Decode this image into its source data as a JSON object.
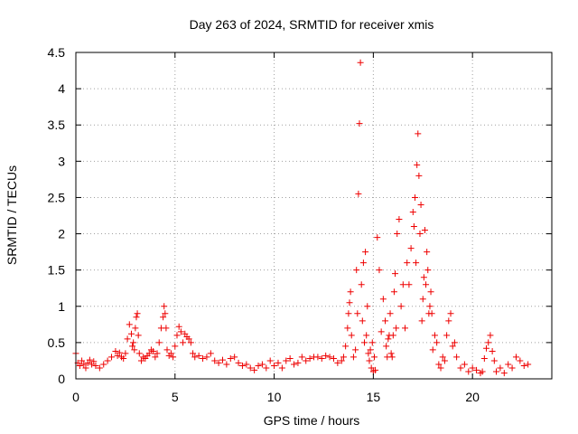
{
  "chart_data": {
    "type": "scatter",
    "title": "Day 263 of 2024, SRMTID for receiver xmis",
    "xlabel": "GPS time / hours",
    "ylabel": "SRMTID / TECUs",
    "xlim": [
      0,
      24
    ],
    "ylim": [
      0,
      4.5
    ],
    "xticks": [
      0,
      5,
      10,
      15,
      20
    ],
    "xtick_labels": [
      "0",
      "5",
      "10",
      "15",
      "20"
    ],
    "yticks": [
      0,
      0.5,
      1,
      1.5,
      2,
      2.5,
      3,
      3.5,
      4,
      4.5
    ],
    "ytick_labels": [
      "0",
      "0.5",
      "1",
      "1.5",
      "2",
      "2.5",
      "3",
      "3.5",
      "4",
      "4.5"
    ],
    "grid": true,
    "marker": "plus",
    "series": [
      {
        "name": "SRMTID",
        "color": "#ee0000",
        "x": [
          0.0,
          0.1,
          0.2,
          0.3,
          0.4,
          0.5,
          0.6,
          0.7,
          0.8,
          0.9,
          1.0,
          1.2,
          1.4,
          1.6,
          1.8,
          2.0,
          2.1,
          2.2,
          2.3,
          2.4,
          2.5,
          2.6,
          2.7,
          2.8,
          2.85,
          2.9,
          2.95,
          3.0,
          3.05,
          3.1,
          3.15,
          3.2,
          3.3,
          3.4,
          3.5,
          3.6,
          3.7,
          3.8,
          3.9,
          4.0,
          4.1,
          4.2,
          4.3,
          4.4,
          4.45,
          4.5,
          4.55,
          4.6,
          4.7,
          4.8,
          4.9,
          5.0,
          5.1,
          5.2,
          5.3,
          5.4,
          5.5,
          5.6,
          5.7,
          5.8,
          5.9,
          6.0,
          6.2,
          6.4,
          6.6,
          6.8,
          7.0,
          7.2,
          7.4,
          7.6,
          7.8,
          8.0,
          8.2,
          8.4,
          8.6,
          8.8,
          9.0,
          9.2,
          9.4,
          9.6,
          9.8,
          10.0,
          10.2,
          10.4,
          10.6,
          10.8,
          11.0,
          11.2,
          11.4,
          11.6,
          11.8,
          12.0,
          12.2,
          12.4,
          12.6,
          12.8,
          13.0,
          13.2,
          13.4,
          13.5,
          13.6,
          13.7,
          13.75,
          13.8,
          13.85,
          13.9,
          14.0,
          14.1,
          14.15,
          14.2,
          14.25,
          14.3,
          14.35,
          14.4,
          14.45,
          14.5,
          14.55,
          14.6,
          14.65,
          14.7,
          14.75,
          14.8,
          14.85,
          14.9,
          14.95,
          15.0,
          15.05,
          15.1,
          15.2,
          15.3,
          15.4,
          15.5,
          15.6,
          15.65,
          15.7,
          15.75,
          15.8,
          15.85,
          15.9,
          15.95,
          16.0,
          16.05,
          16.1,
          16.15,
          16.2,
          16.3,
          16.4,
          16.5,
          16.6,
          16.7,
          16.8,
          16.9,
          17.0,
          17.05,
          17.1,
          17.15,
          17.2,
          17.25,
          17.3,
          17.35,
          17.4,
          17.45,
          17.5,
          17.55,
          17.6,
          17.65,
          17.7,
          17.75,
          17.8,
          17.85,
          17.9,
          17.95,
          18.0,
          18.1,
          18.2,
          18.3,
          18.4,
          18.5,
          18.6,
          18.7,
          18.8,
          18.9,
          19.0,
          19.1,
          19.2,
          19.4,
          19.6,
          19.8,
          20.0,
          20.2,
          20.4,
          20.5,
          20.6,
          20.7,
          20.8,
          20.9,
          21.0,
          21.1,
          21.2,
          21.4,
          21.6,
          21.8,
          22.0,
          22.2,
          22.4,
          22.6,
          22.8
        ],
        "y": [
          0.35,
          0.22,
          0.18,
          0.25,
          0.2,
          0.15,
          0.22,
          0.26,
          0.2,
          0.24,
          0.18,
          0.15,
          0.2,
          0.25,
          0.3,
          0.38,
          0.32,
          0.36,
          0.3,
          0.28,
          0.35,
          0.55,
          0.75,
          0.62,
          0.45,
          0.5,
          0.4,
          0.7,
          0.85,
          0.9,
          0.6,
          0.35,
          0.25,
          0.3,
          0.28,
          0.32,
          0.35,
          0.4,
          0.38,
          0.3,
          0.35,
          0.5,
          0.7,
          0.85,
          1.0,
          0.9,
          0.7,
          0.4,
          0.32,
          0.35,
          0.3,
          0.45,
          0.6,
          0.72,
          0.65,
          0.5,
          0.62,
          0.58,
          0.55,
          0.5,
          0.35,
          0.3,
          0.32,
          0.28,
          0.3,
          0.35,
          0.25,
          0.22,
          0.26,
          0.2,
          0.28,
          0.3,
          0.22,
          0.18,
          0.2,
          0.15,
          0.12,
          0.18,
          0.2,
          0.15,
          0.25,
          0.18,
          0.22,
          0.15,
          0.25,
          0.28,
          0.2,
          0.22,
          0.3,
          0.25,
          0.28,
          0.3,
          0.3,
          0.28,
          0.32,
          0.3,
          0.28,
          0.22,
          0.25,
          0.3,
          0.45,
          0.7,
          0.9,
          1.05,
          1.2,
          0.6,
          0.3,
          0.4,
          1.5,
          0.9,
          2.55,
          3.52,
          4.36,
          1.3,
          0.8,
          1.6,
          0.5,
          1.75,
          0.6,
          1.0,
          0.35,
          0.25,
          0.4,
          0.15,
          0.5,
          0.1,
          0.3,
          0.12,
          1.95,
          1.5,
          0.65,
          1.1,
          0.8,
          0.45,
          0.3,
          0.55,
          0.6,
          0.9,
          0.35,
          0.3,
          0.6,
          1.2,
          1.45,
          0.7,
          2.0,
          2.2,
          1.0,
          1.3,
          0.7,
          1.6,
          1.3,
          1.8,
          2.3,
          2.1,
          2.5,
          1.6,
          2.95,
          3.38,
          2.8,
          2.0,
          2.4,
          0.8,
          1.1,
          1.4,
          2.05,
          1.3,
          1.75,
          1.5,
          0.9,
          1.0,
          1.2,
          0.9,
          0.4,
          0.6,
          0.5,
          0.2,
          0.15,
          0.3,
          0.25,
          0.6,
          0.8,
          0.9,
          0.45,
          0.5,
          0.3,
          0.15,
          0.2,
          0.1,
          0.15,
          0.12,
          0.08,
          0.1,
          0.28,
          0.42,
          0.5,
          0.6,
          0.38,
          0.25,
          0.1,
          0.15,
          0.08,
          0.2,
          0.15,
          0.3,
          0.25,
          0.18,
          0.2
        ]
      }
    ]
  }
}
